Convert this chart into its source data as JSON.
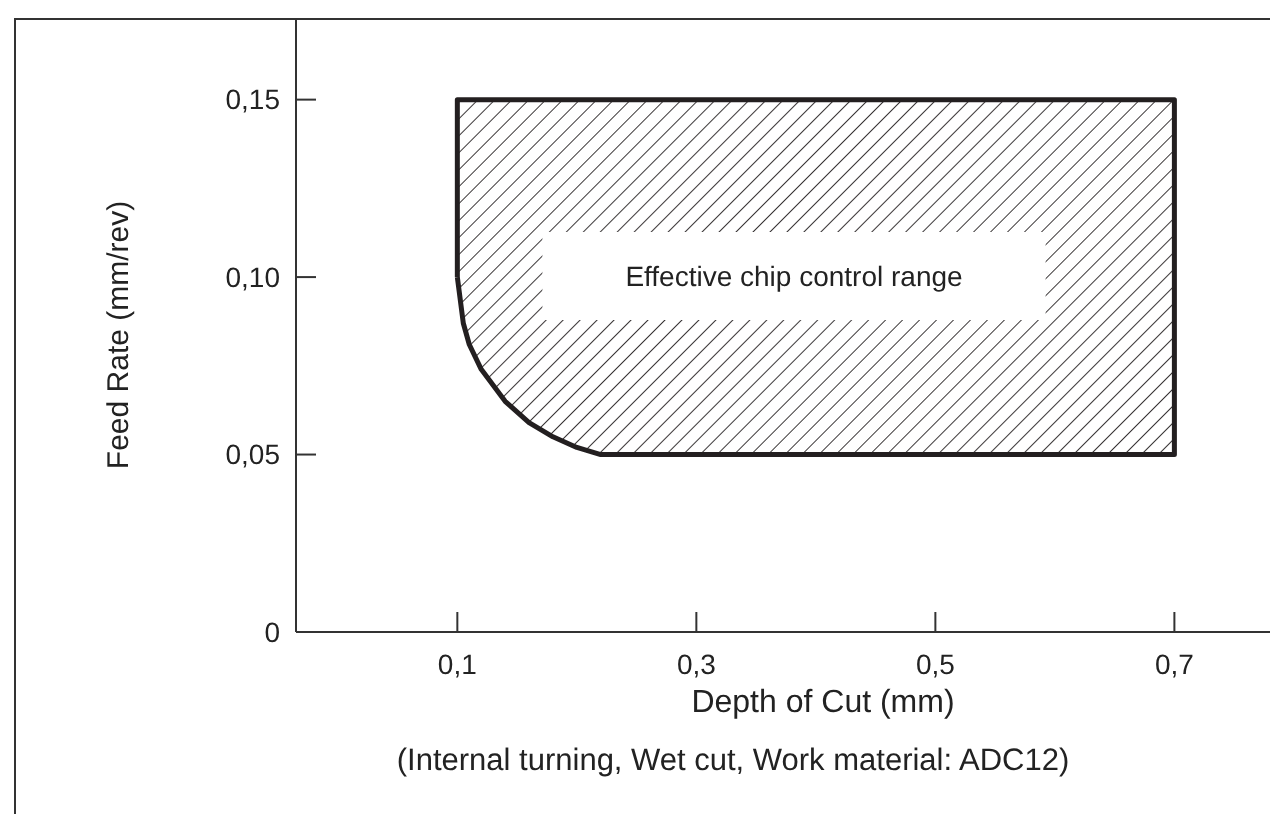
{
  "chart_data": {
    "type": "area",
    "line_style": "solid",
    "marker": "none",
    "xlabel": "Depth of Cut (mm)",
    "ylabel": "Feed Rate (mm/rev)",
    "xlim": [
      -0.035,
      0.78
    ],
    "ylim": [
      0,
      0.173
    ],
    "xticks": [
      {
        "value": 0.1,
        "label": "0,1"
      },
      {
        "value": 0.3,
        "label": "0,3"
      },
      {
        "value": 0.5,
        "label": "0,5"
      },
      {
        "value": 0.7,
        "label": "0,7"
      }
    ],
    "yticks": [
      {
        "value": 0,
        "label": "0"
      },
      {
        "value": 0.05,
        "label": "0,05"
      },
      {
        "value": 0.1,
        "label": "0,10"
      },
      {
        "value": 0.15,
        "label": "0,15"
      }
    ],
    "series": [
      {
        "color": "#231f20",
        "x": [
          0.1,
          0.1,
          0.7,
          0.7,
          0.238,
          0.22,
          0.2,
          0.18,
          0.16,
          0.14,
          0.12,
          0.11,
          0.105,
          0.1
        ],
        "values": [
          0.1,
          0.15,
          0.15,
          0.05,
          0.05,
          0.05,
          0.052,
          0.055,
          0.059,
          0.065,
          0.074,
          0.081,
          0.087,
          0.1
        ]
      }
    ],
    "annotations": [
      "Effective chip control range",
      "(Internal turning, Wet cut, Work material: ADC12)"
    ]
  }
}
